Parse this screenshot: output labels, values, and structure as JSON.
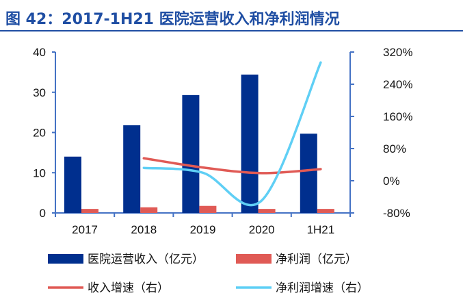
{
  "title": "图 42：2017-1H21 医院运营收入和净利润情况",
  "chart_data": {
    "type": "bar+line",
    "categories": [
      "2017",
      "2018",
      "2019",
      "2020",
      "1H21"
    ],
    "left_axis": {
      "ylim": [
        0,
        40
      ],
      "ticks": [
        "0",
        "10",
        "20",
        "30",
        "40"
      ]
    },
    "right_axis": {
      "ylim": [
        -80,
        320
      ],
      "ticks": [
        "-80%",
        "0%",
        "80%",
        "160%",
        "240%",
        "320%"
      ]
    },
    "series": [
      {
        "name": "医院运营收入（亿元）",
        "type": "bar",
        "axis": "left",
        "color": "#002f8e",
        "values": [
          14.0,
          21.8,
          29.3,
          34.4,
          19.7
        ]
      },
      {
        "name": "净利润（亿元）",
        "type": "bar",
        "axis": "left",
        "color": "#e05a55",
        "values": [
          1.0,
          1.4,
          1.75,
          1.0,
          1.0
        ]
      },
      {
        "name": "收入增速（右）",
        "type": "line",
        "axis": "right",
        "color": "#e05a55",
        "values": [
          null,
          56,
          33,
          19,
          29
        ]
      },
      {
        "name": "净利润增速（右）",
        "type": "line",
        "axis": "right",
        "color": "#5fcff5",
        "values": [
          null,
          32,
          20,
          -49,
          294
        ]
      }
    ],
    "grid": false,
    "legend": "bottom"
  }
}
